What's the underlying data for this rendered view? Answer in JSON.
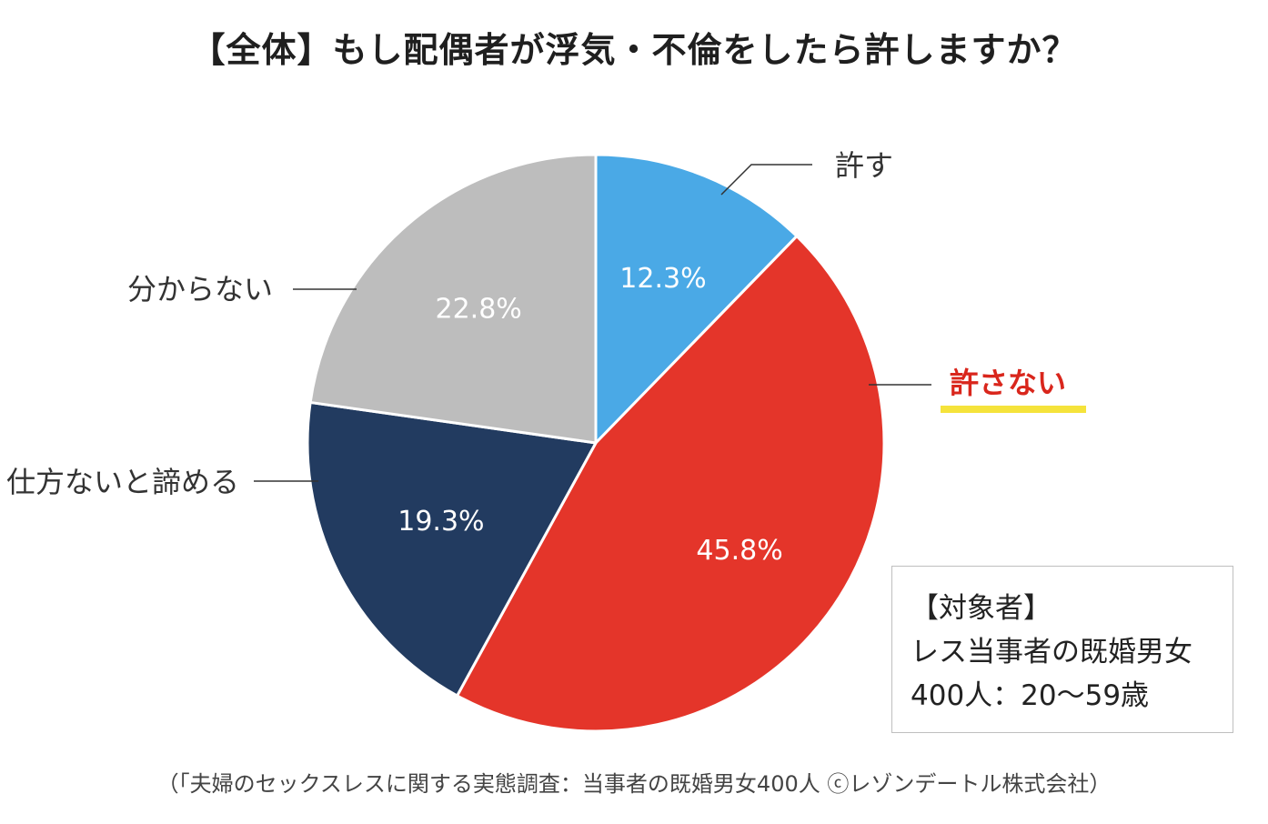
{
  "chart_data": {
    "type": "pie",
    "title": "【全体】もし配偶者が浮気・不倫をしたら許しますか？",
    "slices": [
      {
        "label": "許す",
        "value": 12.3,
        "value_label": "12.3%",
        "color": "#4aa9e6",
        "emphasis": false
      },
      {
        "label": "許さない",
        "value": 45.8,
        "value_label": "45.8%",
        "color": "#e4352a",
        "emphasis": true,
        "emphasis_color": "#d9261c",
        "underline_color": "#f5e33b"
      },
      {
        "label": "仕方ないと諦める",
        "value": 19.3,
        "value_label": "19.3%",
        "color": "#223b60",
        "emphasis": false
      },
      {
        "label": "分からない",
        "value": 22.8,
        "value_label": "22.8%",
        "color": "#bdbdbd",
        "emphasis": false
      }
    ],
    "start_angle": "top",
    "direction": "clockwise"
  },
  "info_box": {
    "lines": [
      "【対象者】",
      "レス当事者の既婚男女",
      "400人：20～59歳"
    ]
  },
  "source_note": "（「夫婦のセックスレスに関する実態調査：当事者の既婚男女400人 ⓒレゾンデートル株式会社）"
}
